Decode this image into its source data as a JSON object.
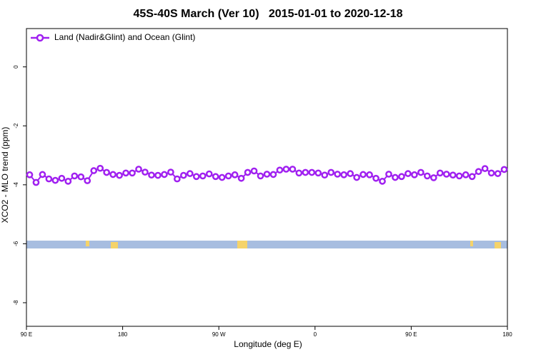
{
  "chart_data": {
    "type": "line",
    "title": "45S-40S March (Ver 10)   2015-01-01 to 2020-12-18",
    "xlabel": "Longitude (deg E)",
    "ylabel": "XCO2 - MLO trend (ppm)",
    "xlim": [
      90,
      540
    ],
    "xticks": [
      {
        "value": 90,
        "label": "90 E"
      },
      {
        "value": 180,
        "label": "180"
      },
      {
        "value": 270,
        "label": "90 W"
      },
      {
        "value": 360,
        "label": "0"
      },
      {
        "value": 450,
        "label": "90 E"
      },
      {
        "value": 540,
        "label": "180"
      }
    ],
    "ylim": [
      -8.8,
      1.3
    ],
    "yticks": [
      0,
      -2,
      -4,
      -6,
      -8
    ],
    "legend": "top-left",
    "x": [
      93,
      99,
      105,
      111,
      117,
      123,
      129,
      135,
      141,
      147,
      153,
      159,
      165,
      171,
      177,
      183,
      189,
      195,
      201,
      207,
      213,
      219,
      225,
      231,
      237,
      243,
      249,
      255,
      261,
      267,
      273,
      279,
      285,
      291,
      297,
      303,
      309,
      315,
      321,
      327,
      333,
      339,
      345,
      351,
      357,
      363,
      369,
      375,
      381,
      387,
      393,
      399,
      405,
      411,
      417,
      423,
      429,
      435,
      441,
      447,
      453,
      459,
      465,
      471,
      477,
      483,
      489,
      495,
      501,
      507,
      513,
      519,
      525,
      531,
      537
    ],
    "series": [
      {
        "name": "Land (Nadir&Glint) and Ocean (Glint)",
        "color": "#a020f0",
        "values": [
          -3.66,
          -3.92,
          -3.65,
          -3.8,
          -3.85,
          -3.78,
          -3.88,
          -3.7,
          -3.73,
          -3.86,
          -3.52,
          -3.44,
          -3.58,
          -3.65,
          -3.68,
          -3.6,
          -3.6,
          -3.47,
          -3.57,
          -3.67,
          -3.68,
          -3.65,
          -3.57,
          -3.8,
          -3.68,
          -3.62,
          -3.72,
          -3.7,
          -3.63,
          -3.72,
          -3.75,
          -3.7,
          -3.66,
          -3.78,
          -3.58,
          -3.53,
          -3.7,
          -3.64,
          -3.65,
          -3.5,
          -3.47,
          -3.47,
          -3.6,
          -3.58,
          -3.58,
          -3.6,
          -3.67,
          -3.58,
          -3.64,
          -3.66,
          -3.62,
          -3.75,
          -3.65,
          -3.66,
          -3.78,
          -3.88,
          -3.64,
          -3.75,
          -3.72,
          -3.62,
          -3.66,
          -3.58,
          -3.7,
          -3.76,
          -3.6,
          -3.64,
          -3.67,
          -3.7,
          -3.66,
          -3.72,
          -3.55,
          -3.45,
          -3.6,
          -3.62,
          -3.48
        ]
      }
    ]
  }
}
